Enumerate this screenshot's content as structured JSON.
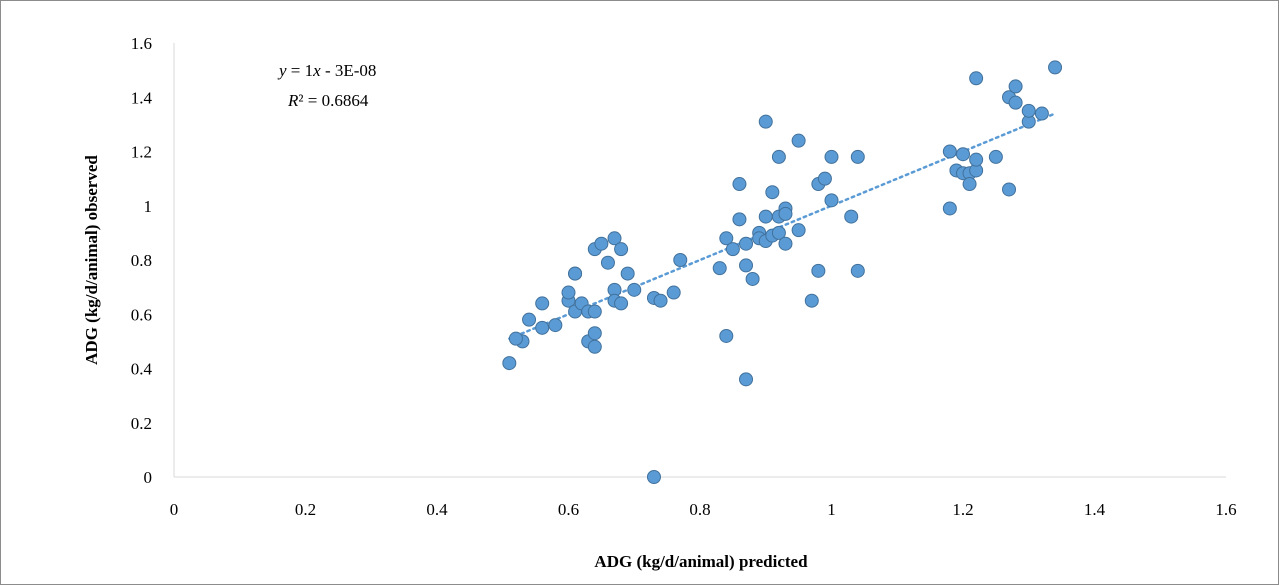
{
  "chart_data": {
    "type": "scatter",
    "xlabel": "ADG (kg/d/animal) predicted",
    "ylabel": "ADG (kg/d/animal) observed",
    "xlim": [
      0,
      1.6
    ],
    "ylim": [
      0,
      1.6
    ],
    "x_ticks": [
      "0",
      "0.2",
      "0.4",
      "0.6",
      "0.8",
      "1",
      "1.2",
      "1.4",
      "1.6"
    ],
    "y_ticks": [
      "0",
      "0.2",
      "0.4",
      "0.6",
      "0.8",
      "1",
      "1.2",
      "1.4",
      "1.6"
    ],
    "grid": false,
    "marker_color": "#5b9bd5",
    "marker_edge": "#41719c",
    "trendline": {
      "style": "dotted",
      "color": "#5b9bd5",
      "equation_prefix": "y",
      "equation_body": " = 1",
      "equation_var": "x",
      "equation_suffix": " - 3E-08",
      "r2_label": "R",
      "r2_suffix": "² = 0.6864",
      "x_range": [
        0.51,
        1.34
      ]
    },
    "points": [
      [
        0.51,
        0.42
      ],
      [
        0.53,
        0.5
      ],
      [
        0.52,
        0.51
      ],
      [
        0.54,
        0.58
      ],
      [
        0.56,
        0.55
      ],
      [
        0.56,
        0.64
      ],
      [
        0.58,
        0.56
      ],
      [
        0.6,
        0.65
      ],
      [
        0.6,
        0.68
      ],
      [
        0.61,
        0.61
      ],
      [
        0.61,
        0.75
      ],
      [
        0.61,
        0.75
      ],
      [
        0.62,
        0.64
      ],
      [
        0.63,
        0.61
      ],
      [
        0.63,
        0.5
      ],
      [
        0.64,
        0.53
      ],
      [
        0.64,
        0.48
      ],
      [
        0.64,
        0.61
      ],
      [
        0.64,
        0.84
      ],
      [
        0.65,
        0.86
      ],
      [
        0.66,
        0.79
      ],
      [
        0.67,
        0.69
      ],
      [
        0.67,
        0.65
      ],
      [
        0.67,
        0.88
      ],
      [
        0.68,
        0.84
      ],
      [
        0.68,
        0.64
      ],
      [
        0.69,
        0.75
      ],
      [
        0.7,
        0.69
      ],
      [
        0.73,
        0.66
      ],
      [
        0.74,
        0.65
      ],
      [
        0.76,
        0.68
      ],
      [
        0.77,
        0.8
      ],
      [
        0.73,
        0.0
      ],
      [
        0.84,
        0.88
      ],
      [
        0.83,
        0.77
      ],
      [
        0.84,
        0.52
      ],
      [
        0.85,
        0.84
      ],
      [
        0.86,
        0.95
      ],
      [
        0.86,
        1.08
      ],
      [
        0.87,
        0.78
      ],
      [
        0.87,
        0.86
      ],
      [
        0.88,
        0.73
      ],
      [
        0.87,
        0.36
      ],
      [
        0.89,
        0.9
      ],
      [
        0.89,
        0.88
      ],
      [
        0.9,
        0.87
      ],
      [
        0.9,
        0.96
      ],
      [
        0.9,
        1.31
      ],
      [
        0.91,
        1.05
      ],
      [
        0.91,
        0.89
      ],
      [
        0.92,
        0.96
      ],
      [
        0.92,
        0.9
      ],
      [
        0.92,
        1.18
      ],
      [
        0.93,
        0.99
      ],
      [
        0.93,
        0.97
      ],
      [
        0.93,
        0.86
      ],
      [
        0.95,
        0.91
      ],
      [
        0.95,
        1.24
      ],
      [
        0.97,
        0.65
      ],
      [
        0.98,
        0.76
      ],
      [
        0.98,
        1.08
      ],
      [
        0.99,
        1.1
      ],
      [
        1.0,
        1.02
      ],
      [
        1.0,
        1.18
      ],
      [
        1.03,
        0.96
      ],
      [
        1.04,
        1.18
      ],
      [
        1.04,
        0.76
      ],
      [
        1.18,
        0.99
      ],
      [
        1.18,
        1.2
      ],
      [
        1.19,
        1.13
      ],
      [
        1.2,
        1.19
      ],
      [
        1.2,
        1.12
      ],
      [
        1.21,
        1.12
      ],
      [
        1.21,
        1.08
      ],
      [
        1.22,
        1.13
      ],
      [
        1.22,
        1.17
      ],
      [
        1.22,
        1.47
      ],
      [
        1.25,
        1.18
      ],
      [
        1.27,
        1.06
      ],
      [
        1.27,
        1.4
      ],
      [
        1.28,
        1.44
      ],
      [
        1.28,
        1.38
      ],
      [
        1.3,
        1.31
      ],
      [
        1.3,
        1.35
      ],
      [
        1.32,
        1.34
      ],
      [
        1.34,
        1.51
      ]
    ]
  }
}
